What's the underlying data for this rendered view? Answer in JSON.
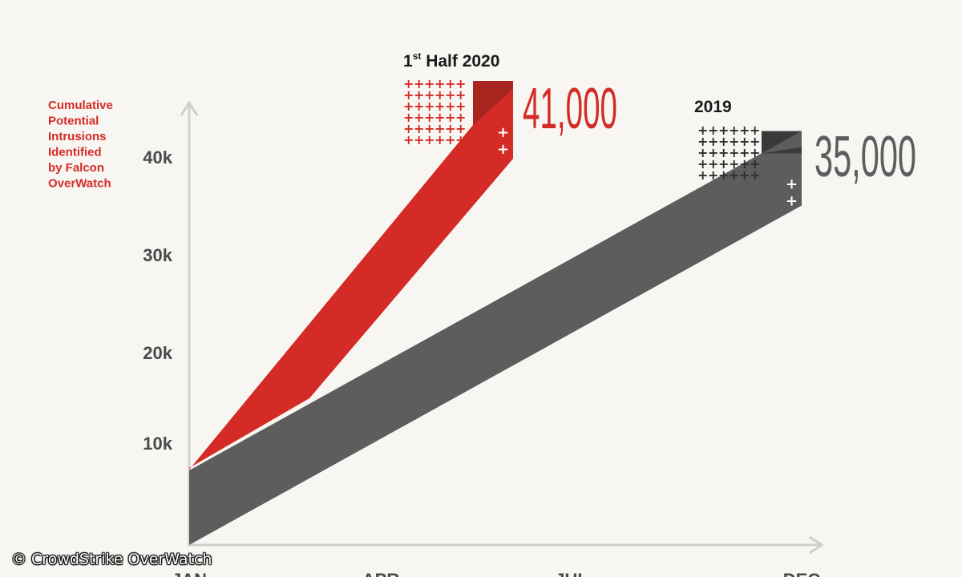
{
  "chart_data": {
    "type": "area",
    "ylabel": "Cumulative Potential Intrusions Identified by Falcon OverWatch",
    "ylabel_lines": [
      "Cumulative",
      "Potential",
      "Intrusions",
      "Identified",
      "by Falcon",
      "OverWatch"
    ],
    "y_ticks": [
      "10k",
      "20k",
      "30k",
      "40k"
    ],
    "x_ticks": [
      "JAN",
      "APR",
      "JUL",
      "DEC"
    ],
    "ylim": [
      0,
      44000
    ],
    "series": [
      {
        "name": "1st Half 2020",
        "name_main": "1",
        "name_sup": "st",
        "name_rest": " Half 2020",
        "value_label": "41,000",
        "x": [
          "JAN",
          "JUN"
        ],
        "values": [
          0,
          41000
        ],
        "color": "#d42b26",
        "shade": "#a82520"
      },
      {
        "name": "2019",
        "value_label": "35,000",
        "x": [
          "JAN",
          "DEC"
        ],
        "values": [
          0,
          35000
        ],
        "color": "#5d5d5d",
        "shade": "#3a3a3a"
      }
    ]
  },
  "colors": {
    "background": "#f8f6f2",
    "axis": "#cfcfcf",
    "tick_label": "#4a4a4a",
    "ylabel": "#d42b26"
  },
  "watermark": "© CrowdStrike OverWatch"
}
